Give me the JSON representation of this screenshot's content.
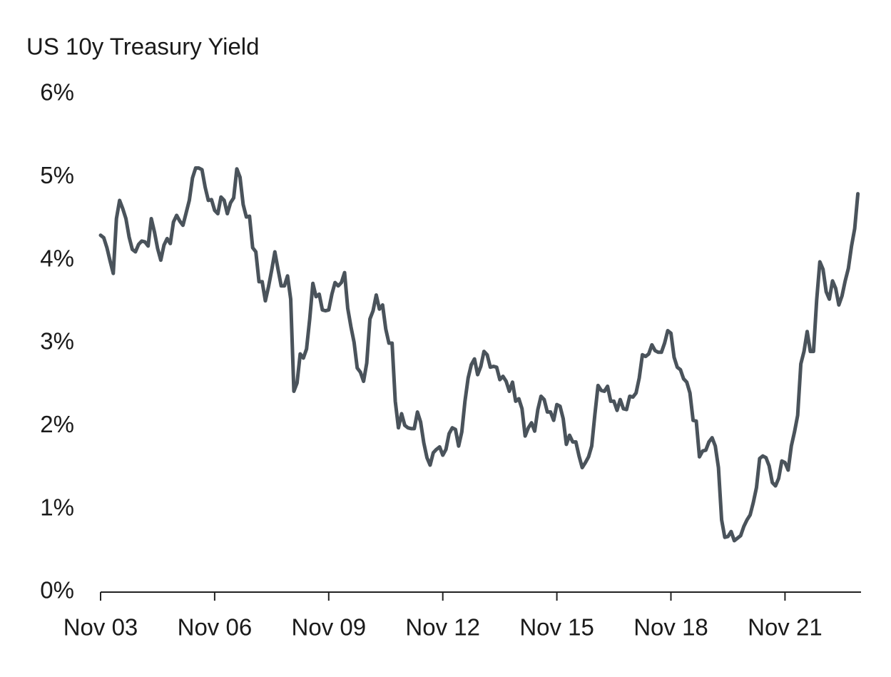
{
  "chart_data": {
    "type": "line",
    "title": "US 10y Treasury Yield",
    "categories": [
      "Nov 03",
      null,
      null,
      null,
      null,
      null,
      null,
      null,
      null,
      null,
      null,
      null,
      null,
      null,
      null,
      null,
      null,
      null,
      null,
      null,
      null,
      null,
      null,
      null,
      null,
      null,
      null,
      null,
      null,
      null,
      null,
      null,
      null,
      null,
      null,
      null,
      "Nov 06",
      null,
      null,
      null,
      null,
      null,
      null,
      null,
      null,
      null,
      null,
      null,
      null,
      null,
      null,
      null,
      null,
      null,
      null,
      null,
      null,
      null,
      null,
      null,
      null,
      null,
      null,
      null,
      null,
      null,
      null,
      null,
      null,
      null,
      null,
      null,
      "Nov 09",
      null,
      null,
      null,
      null,
      null,
      null,
      null,
      null,
      null,
      null,
      null,
      null,
      null,
      null,
      null,
      null,
      null,
      null,
      null,
      null,
      null,
      null,
      null,
      null,
      null,
      null,
      null,
      null,
      null,
      null,
      null,
      null,
      null,
      null,
      null,
      "Nov 12",
      null,
      null,
      null,
      null,
      null,
      null,
      null,
      null,
      null,
      null,
      null,
      null,
      null,
      null,
      null,
      null,
      null,
      null,
      null,
      null,
      null,
      null,
      null,
      null,
      null,
      null,
      null,
      null,
      null,
      null,
      null,
      null,
      null,
      null,
      null,
      "Nov 15",
      null,
      null,
      null,
      null,
      null,
      null,
      null,
      null,
      null,
      null,
      null,
      null,
      null,
      null,
      null,
      null,
      null,
      null,
      null,
      null,
      null,
      null,
      null,
      null,
      null,
      null,
      null,
      null,
      null,
      null,
      null,
      null,
      null,
      null,
      null,
      "Nov 18",
      null,
      null,
      null,
      null,
      null,
      null,
      null,
      null,
      null,
      null,
      null,
      null,
      null,
      null,
      null,
      null,
      null,
      null,
      null,
      null,
      null,
      null,
      null,
      null,
      null,
      null,
      null,
      null,
      null,
      null,
      null,
      null,
      null,
      null,
      null,
      "Nov 21",
      null,
      null,
      null,
      null,
      null,
      null,
      null,
      null,
      null,
      null,
      null,
      null,
      null,
      null,
      null,
      null,
      null,
      null,
      null,
      null,
      null,
      null,
      null
    ],
    "values": [
      4.3,
      4.27,
      4.15,
      3.99,
      3.84,
      4.5,
      4.72,
      4.62,
      4.5,
      4.28,
      4.13,
      4.1,
      4.19,
      4.23,
      4.22,
      4.17,
      4.5,
      4.34,
      4.14,
      4.0,
      4.18,
      4.26,
      4.2,
      4.46,
      4.54,
      4.47,
      4.42,
      4.57,
      4.72,
      4.99,
      5.11,
      5.11,
      5.09,
      4.88,
      4.72,
      4.73,
      4.6,
      4.56,
      4.76,
      4.72,
      4.56,
      4.69,
      4.75,
      5.1,
      5.0,
      4.67,
      4.52,
      4.53,
      4.15,
      4.1,
      3.74,
      3.74,
      3.51,
      3.68,
      3.88,
      4.1,
      3.89,
      3.69,
      3.69,
      3.81,
      3.53,
      2.42,
      2.52,
      2.87,
      2.82,
      2.93,
      3.29,
      3.72,
      3.56,
      3.59,
      3.4,
      3.39,
      3.4,
      3.59,
      3.73,
      3.69,
      3.73,
      3.85,
      3.42,
      3.2,
      3.01,
      2.7,
      2.65,
      2.54,
      2.76,
      3.29,
      3.39,
      3.58,
      3.41,
      3.46,
      3.17,
      3.0,
      3.0,
      2.3,
      1.98,
      2.15,
      2.01,
      1.98,
      1.97,
      1.97,
      2.17,
      2.05,
      1.8,
      1.62,
      1.53,
      1.68,
      1.72,
      1.75,
      1.65,
      1.72,
      1.91,
      1.98,
      1.96,
      1.76,
      1.93,
      2.3,
      2.58,
      2.74,
      2.81,
      2.62,
      2.72,
      2.9,
      2.86,
      2.71,
      2.72,
      2.71,
      2.56,
      2.6,
      2.54,
      2.42,
      2.53,
      2.3,
      2.33,
      2.21,
      1.88,
      1.98,
      2.04,
      1.94,
      2.2,
      2.36,
      2.32,
      2.17,
      2.17,
      2.07,
      2.26,
      2.24,
      2.09,
      1.78,
      1.89,
      1.81,
      1.81,
      1.64,
      1.5,
      1.56,
      1.63,
      1.76,
      2.14,
      2.49,
      2.43,
      2.42,
      2.48,
      2.3,
      2.3,
      2.19,
      2.32,
      2.21,
      2.2,
      2.36,
      2.35,
      2.4,
      2.58,
      2.86,
      2.84,
      2.87,
      2.98,
      2.91,
      2.89,
      2.89,
      3.0,
      3.15,
      3.12,
      2.83,
      2.71,
      2.68,
      2.57,
      2.53,
      2.4,
      2.07,
      2.06,
      1.63,
      1.7,
      1.71,
      1.81,
      1.86,
      1.76,
      1.5,
      0.87,
      0.66,
      0.67,
      0.73,
      0.62,
      0.65,
      0.68,
      0.79,
      0.87,
      0.93,
      1.08,
      1.26,
      1.61,
      1.64,
      1.62,
      1.52,
      1.32,
      1.28,
      1.37,
      1.58,
      1.56,
      1.47,
      1.76,
      1.93,
      2.13,
      2.75,
      2.9,
      3.14,
      2.9,
      2.9,
      3.52,
      3.98,
      3.89,
      3.62,
      3.53,
      3.75,
      3.66,
      3.46,
      3.57,
      3.75,
      3.9,
      4.17,
      4.38,
      4.8
    ],
    "color": "#4a535b",
    "ylim": [
      0,
      6
    ],
    "yticks": [
      {
        "value": 0,
        "label": "0%"
      },
      {
        "value": 1,
        "label": "1%"
      },
      {
        "value": 2,
        "label": "2%"
      },
      {
        "value": 3,
        "label": "3%"
      },
      {
        "value": 4,
        "label": "4%"
      },
      {
        "value": 5,
        "label": "5%"
      },
      {
        "value": 6,
        "label": "6%"
      }
    ],
    "grid": false
  }
}
